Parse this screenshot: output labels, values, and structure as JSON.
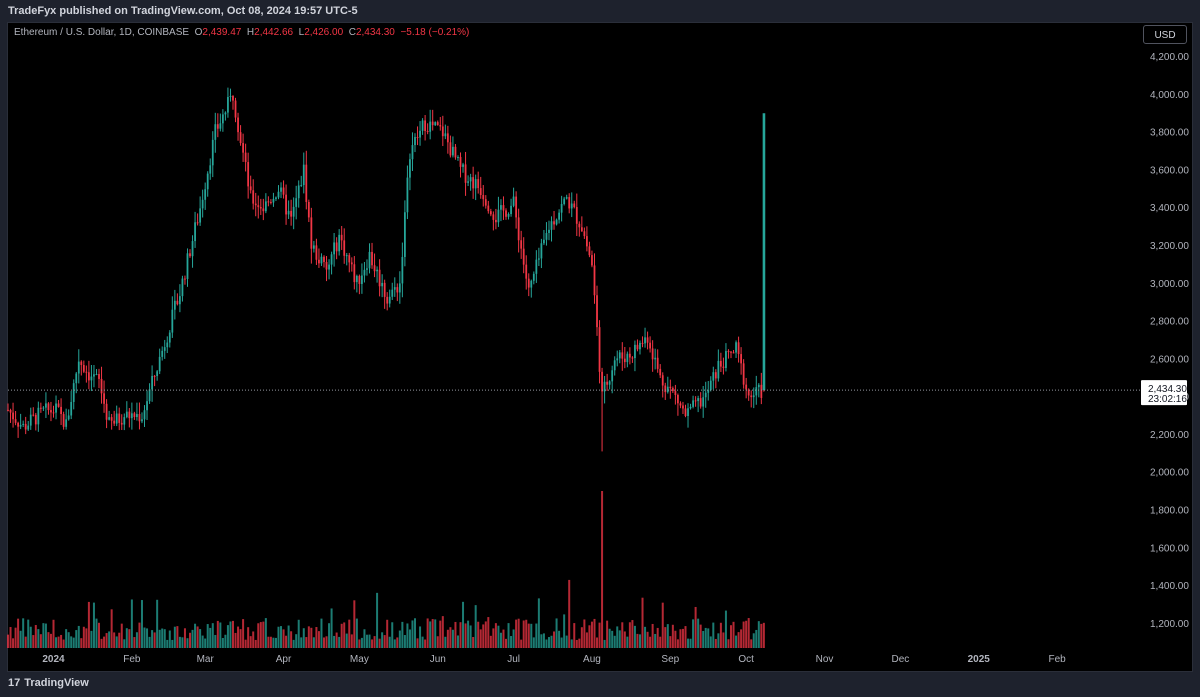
{
  "header": {
    "publisher_text": "TradeFyx published on TradingView.com, Oct 08, 2024 19:57 UTC-5"
  },
  "legend": {
    "symbol": "Ethereum / U.S. Dollar, 1D, COINBASE",
    "o_label": "O",
    "o_value": "2,439.47",
    "h_label": "H",
    "h_value": "2,442.66",
    "l_label": "L",
    "l_value": "2,426.00",
    "c_label": "C",
    "c_value": "2,434.30",
    "change": "−5.18 (−0.21%)"
  },
  "currency_button": "USD",
  "price_label": {
    "price": "2,434.30",
    "countdown": "23:02:16"
  },
  "footer": {
    "logo_mark": "17",
    "logo_text": "TradingView"
  },
  "colors": {
    "up": "#26a69a",
    "down": "#f23645",
    "background": "#000000",
    "frame": "#1e222d",
    "axis_text": "#b2b5be"
  },
  "chart_data": {
    "type": "candlestick",
    "symbol": "Ethereum / U.S. Dollar",
    "interval": "1D",
    "exchange": "COINBASE",
    "y_axis": {
      "ylim": [
        1080,
        4330
      ],
      "ticks": [
        1200,
        1400,
        1600,
        1800,
        2000,
        2200,
        2400,
        2600,
        2800,
        3000,
        3200,
        3400,
        3600,
        3800,
        4000,
        4200
      ],
      "tick_labels": [
        "1,200.00",
        "1,400.00",
        "1,600.00",
        "1,800.00",
        "2,000.00",
        "2,200.00",
        "2,400.00",
        "2,600.00",
        "2,800.00",
        "3,000.00",
        "3,200.00",
        "3,400.00",
        "3,600.00",
        "3,800.00",
        "4,000.00",
        "4,200.00"
      ]
    },
    "x_axis": {
      "start": "2023-12-14",
      "end": "2025-03-05",
      "ticks": [
        {
          "date": "2024-01-01",
          "label": "2024"
        },
        {
          "date": "2024-02-01",
          "label": "Feb"
        },
        {
          "date": "2024-03-01",
          "label": "Mar"
        },
        {
          "date": "2024-04-01",
          "label": "Apr"
        },
        {
          "date": "2024-05-01",
          "label": "May"
        },
        {
          "date": "2024-06-01",
          "label": "Jun"
        },
        {
          "date": "2024-07-01",
          "label": "Jul"
        },
        {
          "date": "2024-08-01",
          "label": "Aug"
        },
        {
          "date": "2024-09-01",
          "label": "Sep"
        },
        {
          "date": "2024-10-01",
          "label": "Oct"
        },
        {
          "date": "2024-11-01",
          "label": "Nov"
        },
        {
          "date": "2024-12-01",
          "label": "Dec"
        },
        {
          "date": "2025-01-01",
          "label": "2025"
        },
        {
          "date": "2025-02-01",
          "label": "Feb"
        }
      ]
    },
    "price_path": [
      [
        "2023-12-14",
        2330
      ],
      [
        "2023-12-20",
        2240
      ],
      [
        "2023-12-28",
        2320
      ],
      [
        "2024-01-02",
        2330
      ],
      [
        "2024-01-06",
        2250
      ],
      [
        "2024-01-11",
        2600
      ],
      [
        "2024-01-15",
        2520
      ],
      [
        "2024-01-19",
        2480
      ],
      [
        "2024-01-23",
        2250
      ],
      [
        "2024-01-29",
        2300
      ],
      [
        "2024-02-05",
        2300
      ],
      [
        "2024-02-12",
        2600
      ],
      [
        "2024-02-20",
        2950
      ],
      [
        "2024-02-28",
        3400
      ],
      [
        "2024-03-05",
        3800
      ],
      [
        "2024-03-12",
        4000
      ],
      [
        "2024-03-19",
        3450
      ],
      [
        "2024-03-24",
        3400
      ],
      [
        "2024-03-30",
        3500
      ],
      [
        "2024-04-04",
        3330
      ],
      [
        "2024-04-09",
        3600
      ],
      [
        "2024-04-12",
        3200
      ],
      [
        "2024-04-18",
        3060
      ],
      [
        "2024-04-23",
        3250
      ],
      [
        "2024-04-30",
        3000
      ],
      [
        "2024-05-05",
        3150
      ],
      [
        "2024-05-12",
        2920
      ],
      [
        "2024-05-17",
        3000
      ],
      [
        "2024-05-21",
        3700
      ],
      [
        "2024-05-27",
        3850
      ],
      [
        "2024-06-03",
        3800
      ],
      [
        "2024-06-10",
        3600
      ],
      [
        "2024-06-18",
        3500
      ],
      [
        "2024-06-24",
        3350
      ],
      [
        "2024-07-01",
        3420
      ],
      [
        "2024-07-07",
        2950
      ],
      [
        "2024-07-15",
        3300
      ],
      [
        "2024-07-22",
        3450
      ],
      [
        "2024-07-28",
        3300
      ],
      [
        "2024-08-01",
        3100
      ],
      [
        "2024-08-05",
        2400
      ],
      [
        "2024-08-10",
        2600
      ],
      [
        "2024-08-16",
        2620
      ],
      [
        "2024-08-23",
        2720
      ],
      [
        "2024-08-28",
        2500
      ],
      [
        "2024-09-03",
        2400
      ],
      [
        "2024-09-07",
        2300
      ],
      [
        "2024-09-15",
        2400
      ],
      [
        "2024-09-20",
        2560
      ],
      [
        "2024-09-27",
        2650
      ],
      [
        "2024-10-02",
        2400
      ],
      [
        "2024-10-08",
        2434
      ]
    ],
    "last_candle": {
      "date": "2024-10-08",
      "open": 2439.47,
      "high": 2442.66,
      "low": 2426.0,
      "close": 2434.3
    },
    "volume_spike": {
      "date": "2024-08-05"
    },
    "volume_overlay_spike": {
      "date": "2024-10-08",
      "level": 3900
    }
  }
}
